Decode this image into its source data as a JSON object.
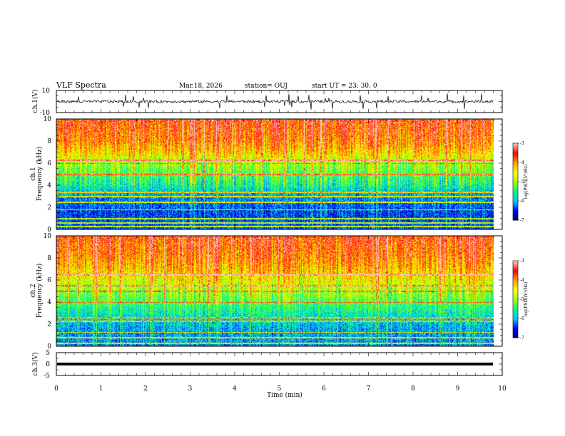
{
  "header": {
    "title": "VLF Spectra",
    "date": "Mar.18, 2026",
    "station": "station= OUJ",
    "start_ut": "start  UT  =  23: 30: 0"
  },
  "colors": {
    "spectrogram_scale": [
      "#000070",
      "#0000ff",
      "#00c8ff",
      "#00ff80",
      "#a0ff00",
      "#ffff00",
      "#ffa000",
      "#ff0000",
      "#ffc8c8"
    ]
  },
  "chart_data": [
    {
      "type": "line",
      "id": "ch1-waveform",
      "ylabel": "ch.1(V)",
      "ylim": [
        -10,
        10
      ],
      "yticks": [
        "10",
        "-10"
      ],
      "xlim": [
        0,
        10
      ],
      "trace_extent_min": 9.8,
      "baseline_v": 0,
      "grid": false
    },
    {
      "type": "heatmap",
      "id": "ch1-spectrogram",
      "ylabel_line1": "ch.1",
      "ylabel_line2": "Frequency (kHz)",
      "ylim": [
        0,
        10
      ],
      "yticks": [
        "0",
        "2",
        "4",
        "6",
        "8",
        "10"
      ],
      "xlim": [
        0,
        10
      ],
      "data_extent_min": 9.8,
      "colorbar": {
        "label": "log(PSD)(V²/Hz)",
        "range": [
          -7,
          -3
        ],
        "ticks": [
          "-3",
          "-4",
          "-5",
          "-6",
          "-7"
        ]
      },
      "profile_log_psd": [
        [
          0,
          -6.3
        ],
        [
          1.5,
          -6.4
        ],
        [
          3,
          -6.1
        ],
        [
          4,
          -5.6
        ],
        [
          5,
          -5.3
        ],
        [
          6,
          -4.9
        ],
        [
          7,
          -4.3
        ],
        [
          8,
          -3.9
        ],
        [
          10,
          -3.6
        ]
      ],
      "lines_khz": [
        0.3,
        0.6,
        1.0,
        1.8,
        2.5,
        3.0,
        3.4,
        5.0,
        6.0,
        6.3
      ]
    },
    {
      "type": "heatmap",
      "id": "ch2-spectrogram",
      "ylabel_line1": "ch.2",
      "ylabel_line2": "Frequency (kHz)",
      "ylim": [
        0,
        10
      ],
      "yticks": [
        "0",
        "2",
        "4",
        "6",
        "8",
        "10"
      ],
      "xlim": [
        0,
        10
      ],
      "data_extent_min": 9.8,
      "colorbar": {
        "label": "log(PSD)(V²/Hz)",
        "range": [
          -7,
          -3
        ],
        "ticks": [
          "-3",
          "-4",
          "-5",
          "-6",
          "-7"
        ]
      },
      "profile_log_psd": [
        [
          0,
          -6.1
        ],
        [
          1.5,
          -6.0
        ],
        [
          2.5,
          -5.8
        ],
        [
          3.5,
          -5.5
        ],
        [
          4.5,
          -5.1
        ],
        [
          5.5,
          -4.7
        ],
        [
          7,
          -4.2
        ],
        [
          8,
          -3.9
        ],
        [
          10,
          -3.6
        ]
      ],
      "lines_khz": [
        0.3,
        0.8,
        1.3,
        2.3,
        2.6,
        4.0,
        5.0,
        5.5,
        6.5
      ]
    },
    {
      "type": "line",
      "id": "ch3-waveform",
      "ylabel": "ch.3(V)",
      "ylim": [
        -5,
        5
      ],
      "yticks": [
        "5",
        "0",
        "-5"
      ],
      "xlim": [
        0,
        10
      ],
      "trace_extent_min": 9.8,
      "baseline_v": 0,
      "xlabel": "Time  (min)",
      "xticks": [
        "0",
        "1",
        "2",
        "3",
        "4",
        "5",
        "6",
        "7",
        "8",
        "9",
        "10"
      ],
      "grid": false
    }
  ]
}
